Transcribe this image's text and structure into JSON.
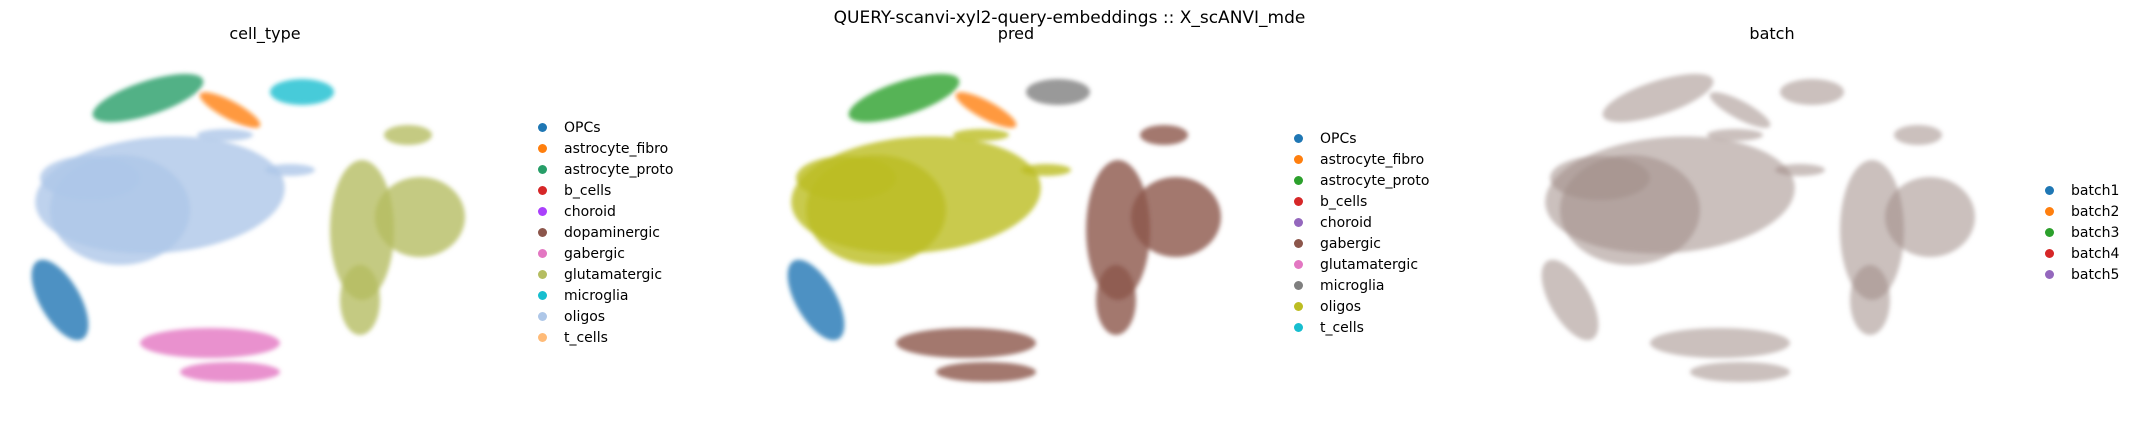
{
  "figure": {
    "suptitle": "QUERY-scanvi-xyl2-query-embeddings :: X_scANVI_mde"
  },
  "chart_data": [
    {
      "type": "scatter",
      "title": "cell_type",
      "legend": [
        {
          "label": "OPCs",
          "color": "#1f77b4"
        },
        {
          "label": "astrocyte_fibro",
          "color": "#ff7f0e"
        },
        {
          "label": "astrocyte_proto",
          "color": "#279e68"
        },
        {
          "label": "b_cells",
          "color": "#d62728"
        },
        {
          "label": "choroid",
          "color": "#aa40fc"
        },
        {
          "label": "dopaminergic",
          "color": "#8c564b"
        },
        {
          "label": "gabergic",
          "color": "#e377c2"
        },
        {
          "label": "glutamatergic",
          "color": "#b5bd61"
        },
        {
          "label": "microglia",
          "color": "#17becf"
        },
        {
          "label": "oligos",
          "color": "#aec7e8"
        },
        {
          "label": "t_cells",
          "color": "#ffbb78"
        }
      ],
      "legend_position": "right",
      "axes": "off"
    },
    {
      "type": "scatter",
      "title": "pred",
      "legend": [
        {
          "label": "OPCs",
          "color": "#1f77b4"
        },
        {
          "label": "astrocyte_fibro",
          "color": "#ff7f0e"
        },
        {
          "label": "astrocyte_proto",
          "color": "#2ca02c"
        },
        {
          "label": "b_cells",
          "color": "#d62728"
        },
        {
          "label": "choroid",
          "color": "#9467bd"
        },
        {
          "label": "gabergic",
          "color": "#8c564b"
        },
        {
          "label": "glutamatergic",
          "color": "#e377c2"
        },
        {
          "label": "microglia",
          "color": "#7f7f7f"
        },
        {
          "label": "oligos",
          "color": "#bcbd22"
        },
        {
          "label": "t_cells",
          "color": "#17becf"
        }
      ],
      "legend_position": "right",
      "axes": "off"
    },
    {
      "type": "scatter",
      "title": "batch",
      "legend": [
        {
          "label": "batch1",
          "color": "#1f77b4"
        },
        {
          "label": "batch2",
          "color": "#ff7f0e"
        },
        {
          "label": "batch3",
          "color": "#2ca02c"
        },
        {
          "label": "batch4",
          "color": "#d62728"
        },
        {
          "label": "batch5",
          "color": "#9467bd"
        }
      ],
      "legend_position": "right",
      "axes": "off"
    }
  ]
}
